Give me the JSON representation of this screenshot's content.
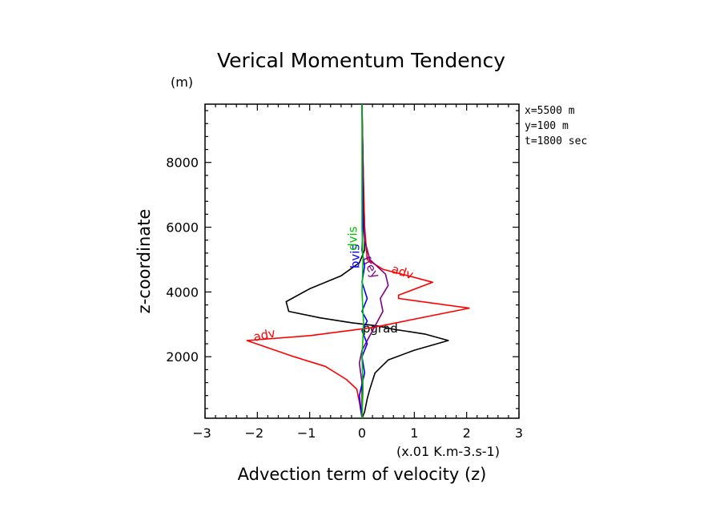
{
  "chart_data": {
    "type": "line",
    "title": "Verical Momentum Tendency",
    "y_unit": "(m)",
    "xlabel": "Advection term of velocity (z)",
    "x_unit": "(x.01 K.m-3.s-1)",
    "ylabel": "z-coordinate",
    "xlim": [
      -3,
      3
    ],
    "ylim": [
      100,
      9800
    ],
    "x_ticks": [
      "-3",
      "-2",
      "-1",
      "0",
      "1",
      "2",
      "3"
    ],
    "y_ticks": [
      "2000",
      "4000",
      "6000",
      "8000"
    ],
    "info": [
      "x=5500 m",
      "y=100 m",
      "t=1800 sec"
    ],
    "grid": false,
    "series": [
      {
        "name": "pgrad",
        "color": "#000000",
        "points": [
          [
            0.0,
            100
          ],
          [
            0.05,
            300
          ],
          [
            0.1,
            700
          ],
          [
            0.15,
            1000
          ],
          [
            0.25,
            1500
          ],
          [
            0.5,
            1900
          ],
          [
            1.0,
            2200
          ],
          [
            1.65,
            2500
          ],
          [
            1.2,
            2700
          ],
          [
            0.6,
            2850
          ],
          [
            0.3,
            2950
          ],
          [
            -0.2,
            3050
          ],
          [
            -0.8,
            3200
          ],
          [
            -1.4,
            3400
          ],
          [
            -1.45,
            3700
          ],
          [
            -1.0,
            4100
          ],
          [
            -0.4,
            4500
          ],
          [
            -0.05,
            4900
          ],
          [
            0.05,
            5300
          ],
          [
            0.05,
            6000
          ],
          [
            0.03,
            7000
          ],
          [
            0.02,
            8000
          ],
          [
            0.0,
            9800
          ]
        ],
        "label_value": [
          0.35,
          2750
        ]
      },
      {
        "name": "adv",
        "color": "#ff0000",
        "points": [
          [
            0.0,
            100
          ],
          [
            -0.05,
            600
          ],
          [
            -0.1,
            1000
          ],
          [
            -0.3,
            1300
          ],
          [
            -0.7,
            1700
          ],
          [
            -1.3,
            2000
          ],
          [
            -2.2,
            2500
          ],
          [
            -1.0,
            2650
          ],
          [
            0.2,
            2900
          ],
          [
            2.05,
            3500
          ],
          [
            0.7,
            3800
          ],
          [
            0.7,
            3900
          ],
          [
            1.35,
            4300
          ],
          [
            1.0,
            4450
          ],
          [
            0.4,
            4700
          ],
          [
            0.1,
            5000
          ],
          [
            0.05,
            6000
          ],
          [
            0.02,
            8000
          ],
          [
            0.0,
            9800
          ]
        ],
        "label_value": [
          -1.85,
          2550
        ]
      },
      {
        "name": "adv",
        "color": "#ff0000",
        "points": [],
        "label_value": [
          0.75,
          4500
        ]
      },
      {
        "name": "frey",
        "color": "#800080",
        "points": [
          [
            0.0,
            100
          ],
          [
            0.0,
            1200
          ],
          [
            -0.05,
            1800
          ],
          [
            0.0,
            2200
          ],
          [
            0.1,
            2500
          ],
          [
            0.2,
            2800
          ],
          [
            0.3,
            3100
          ],
          [
            0.4,
            3400
          ],
          [
            0.35,
            3800
          ],
          [
            0.5,
            4200
          ],
          [
            0.45,
            4550
          ],
          [
            0.15,
            5000
          ],
          [
            0.05,
            5600
          ],
          [
            0.02,
            6500
          ],
          [
            0.0,
            9800
          ]
        ],
        "label_value": [
          0.1,
          4700
        ]
      },
      {
        "name": "bvis",
        "color": "#0000ff",
        "points": [
          [
            0.0,
            100
          ],
          [
            -0.05,
            800
          ],
          [
            0.05,
            1500
          ],
          [
            0.0,
            2000
          ],
          [
            0.1,
            2400
          ],
          [
            0.0,
            2800
          ],
          [
            0.1,
            3100
          ],
          [
            0.0,
            3400
          ],
          [
            0.1,
            3800
          ],
          [
            0.0,
            4300
          ],
          [
            0.05,
            4800
          ],
          [
            0.0,
            5300
          ],
          [
            0.02,
            6000
          ],
          [
            0.0,
            9800
          ]
        ],
        "label_value": [
          -0.05,
          5100
        ]
      },
      {
        "name": "dvis",
        "color": "#00c000",
        "points": [
          [
            0.0,
            100
          ],
          [
            0.02,
            1000
          ],
          [
            0.0,
            2000
          ],
          [
            0.03,
            3000
          ],
          [
            0.0,
            4000
          ],
          [
            0.02,
            5000
          ],
          [
            0.0,
            6000
          ],
          [
            0.0,
            9800
          ]
        ],
        "label_value": [
          -0.1,
          5650
        ]
      }
    ]
  }
}
